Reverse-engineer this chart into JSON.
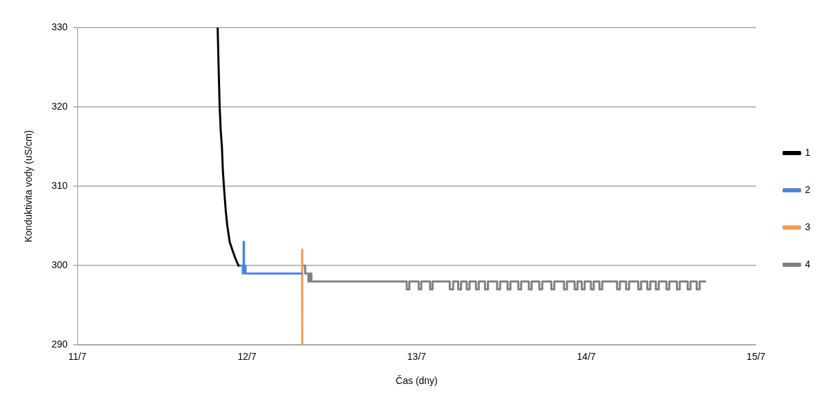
{
  "chart_data": {
    "type": "line",
    "xlabel": "Čas (dny)",
    "ylabel": "Konduktivita vody (uS/cm)",
    "xlim": [
      "--07-11",
      "--07-15"
    ],
    "xticks": [
      {
        "value": "--07-11",
        "label": "11/7"
      },
      {
        "value": "--07-12",
        "label": "12/7"
      },
      {
        "value": "--07-13",
        "label": "13/7"
      },
      {
        "value": "--07-14",
        "label": "14/7"
      },
      {
        "value": "--07-15",
        "label": "15/7"
      }
    ],
    "ylim": [
      290,
      330
    ],
    "yticks": [
      290,
      300,
      310,
      320,
      330
    ],
    "grid": "y",
    "legend": "right",
    "marker": "none",
    "series": [
      {
        "name": "1",
        "color": "#000000",
        "type": "line",
        "x": [
          "--07-11T19:51",
          "--07-11T19:59",
          "--07-11T20:08",
          "--07-11T20:17",
          "--07-11T20:27",
          "--07-11T20:35",
          "--07-11T20:44",
          "--07-11T20:59",
          "--07-11T21:13",
          "--07-11T21:33",
          "--07-11T21:55",
          "--07-11T22:19",
          "--07-11T22:48"
        ],
        "values": [
          330,
          325,
          320,
          317,
          315,
          312,
          310,
          307,
          305,
          303,
          302,
          301,
          300
        ]
      },
      {
        "name": "2",
        "color": "#4a86d8",
        "type": "step",
        "x": [
          "--07-11T22:48",
          "--07-11T23:24",
          "--07-11T23:31",
          "--07-11T23:35",
          "--07-11T23:41",
          "--07-11T23:48",
          "--07-12T07:44"
        ],
        "values": [
          300,
          299,
          303,
          300,
          300,
          299,
          299
        ]
      },
      {
        "name": "3",
        "color": "#f59a46",
        "type": "line",
        "x": [
          "--07-12T07:48",
          "--07-12T07:49"
        ],
        "values": [
          302,
          290
        ]
      },
      {
        "name": "4",
        "color": "#808080",
        "type": "step",
        "x": [
          "--07-12T07:57",
          "--07-12T08:14",
          "--07-12T08:41",
          "--07-12T08:53",
          "--07-12T09:07",
          "--07-12T22:36",
          "--07-12T22:58",
          "--07-13T00:17",
          "--07-13T00:39",
          "--07-13T01:54",
          "--07-13T02:15",
          "--07-13T04:41",
          "--07-13T05:10",
          "--07-13T05:53",
          "--07-13T06:17",
          "--07-13T07:05",
          "--07-13T07:29",
          "--07-13T08:23",
          "--07-13T08:47",
          "--07-13T09:40",
          "--07-13T10:05",
          "--07-13T11:23",
          "--07-13T11:48",
          "--07-13T12:52",
          "--07-13T13:16",
          "--07-13T14:23",
          "--07-13T14:47",
          "--07-13T15:52",
          "--07-13T16:16",
          "--07-13T17:21",
          "--07-13T17:46",
          "--07-13T19:03",
          "--07-13T19:28",
          "--07-13T20:51",
          "--07-13T21:16",
          "--07-13T22:21",
          "--07-13T22:45",
          "--07-13T23:21",
          "--07-13T23:46",
          "--07-14T00:39",
          "--07-14T01:03",
          "--07-14T01:51",
          "--07-14T02:15",
          "--07-14T04:21",
          "--07-14T04:45",
          "--07-14T05:38",
          "--07-14T06:03",
          "--07-14T07:21",
          "--07-14T07:45",
          "--07-14T08:38",
          "--07-14T09:03",
          "--07-14T09:50",
          "--07-14T10:15",
          "--07-14T11:20",
          "--07-14T11:44",
          "--07-14T12:49",
          "--07-14T13:13",
          "--07-14T14:20",
          "--07-14T14:44",
          "--07-14T15:37",
          "--07-14T16:02",
          "--07-14T16:49"
        ],
        "values": [
          300,
          299,
          298,
          299,
          298,
          297,
          298,
          297,
          298,
          297,
          298,
          297,
          298,
          297,
          298,
          297,
          298,
          297,
          298,
          297,
          298,
          297,
          298,
          297,
          298,
          297,
          298,
          297,
          298,
          297,
          298,
          297,
          298,
          297,
          298,
          297,
          298,
          297,
          298,
          297,
          298,
          297,
          298,
          297,
          298,
          297,
          298,
          297,
          298,
          297,
          298,
          297,
          298,
          297,
          298,
          297,
          298,
          297,
          298,
          297,
          298,
          298
        ]
      }
    ]
  }
}
